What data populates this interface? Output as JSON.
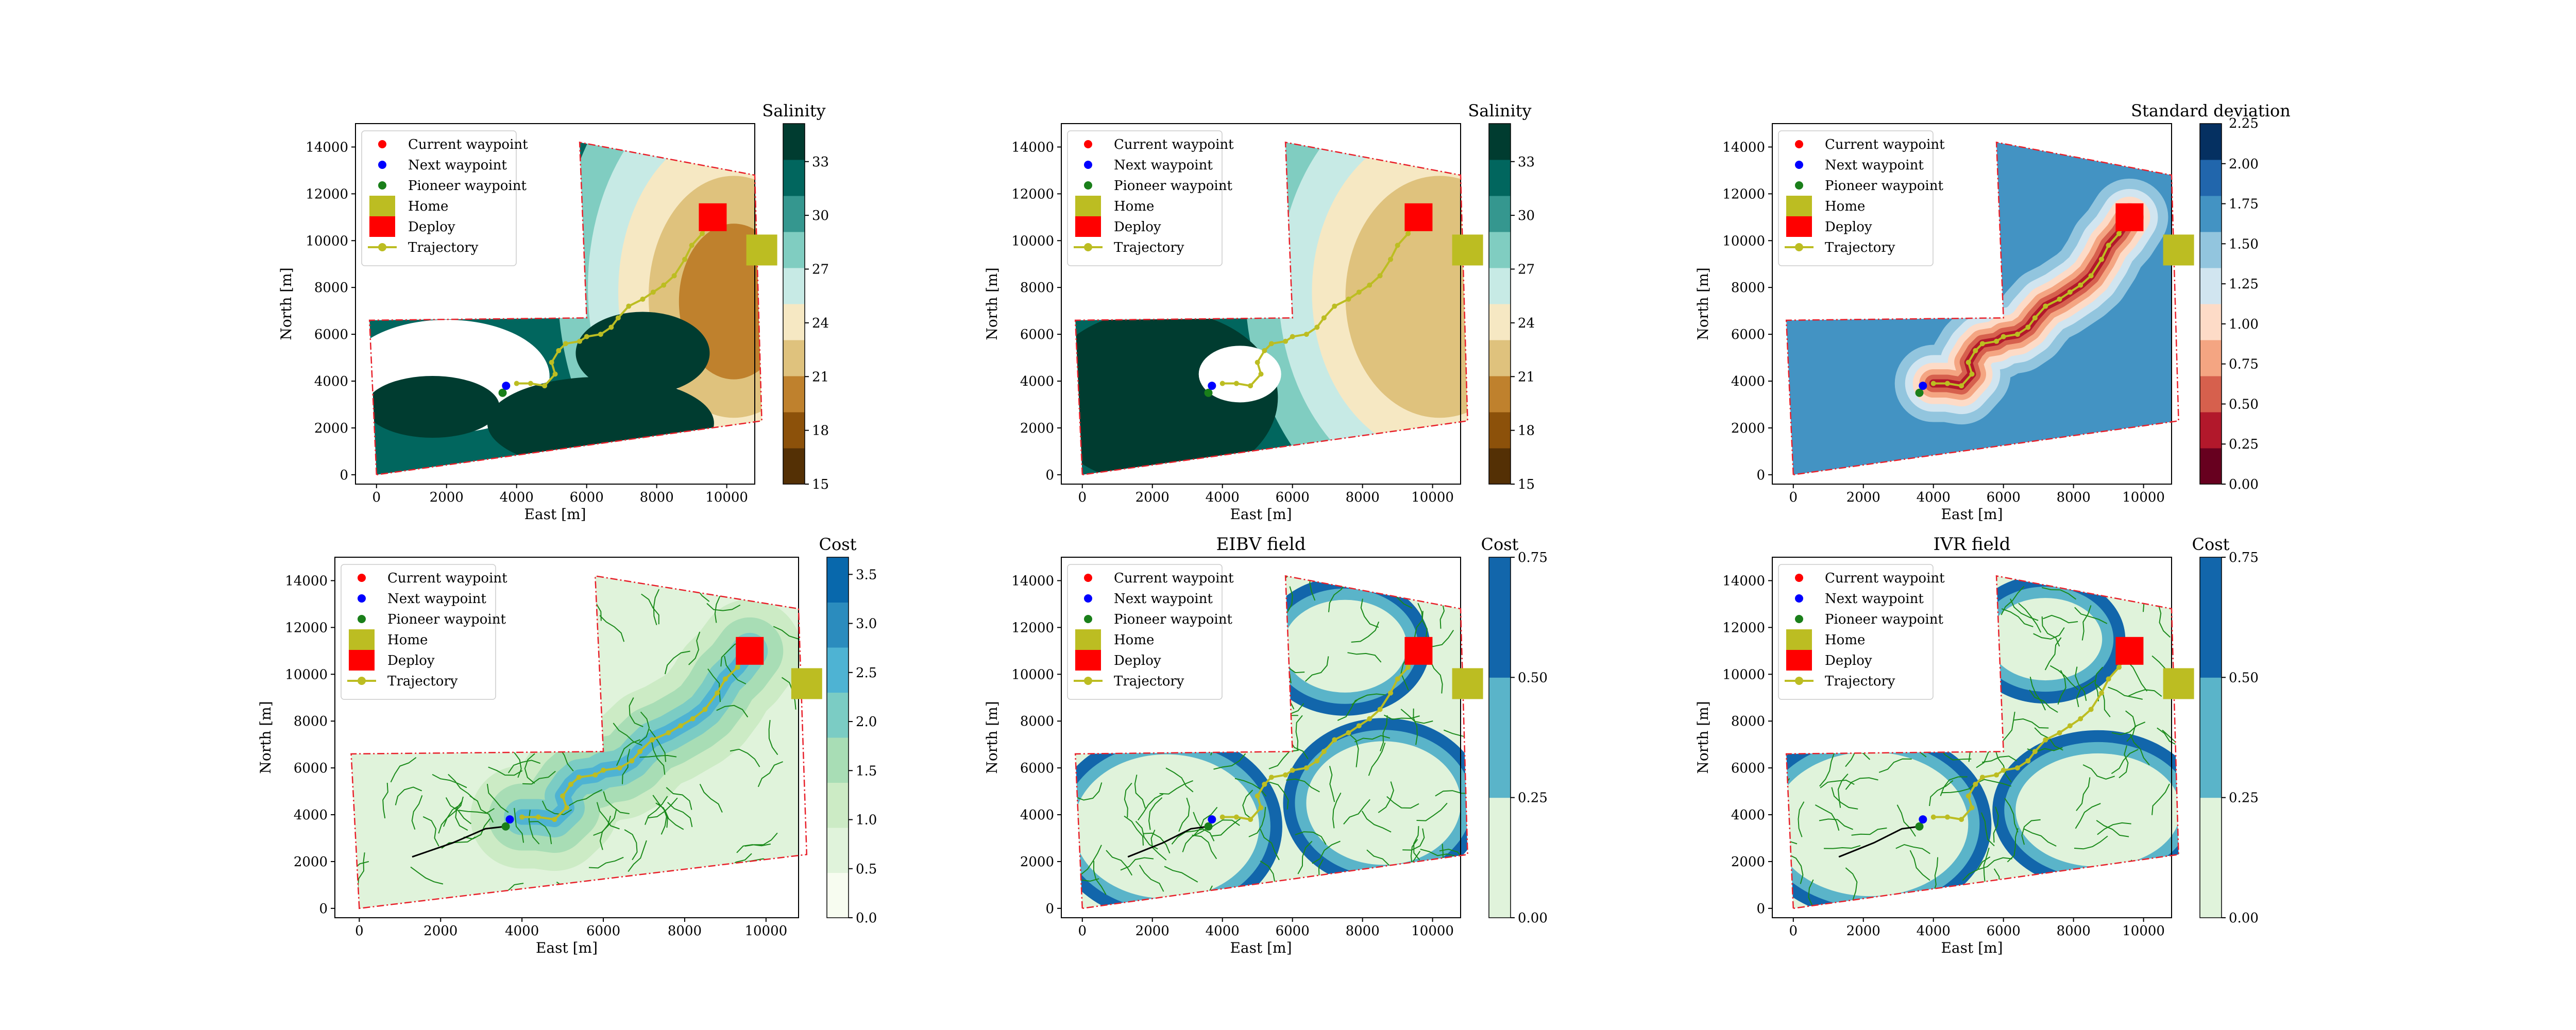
{
  "chart_data": {
    "type": "contour",
    "x_range": [
      -600,
      10800
    ],
    "y_range": [
      -400,
      15000
    ],
    "x_ticks": [
      0,
      2000,
      4000,
      6000,
      8000,
      10000
    ],
    "y_ticks": [
      0,
      2000,
      4000,
      6000,
      8000,
      10000,
      12000,
      14000
    ],
    "x_label": "East [m]",
    "y_label": "North [m]",
    "boundary": [
      [
        0,
        0
      ],
      [
        -200,
        6600
      ],
      [
        6000,
        6700
      ],
      [
        5800,
        14200
      ],
      [
        10800,
        12800
      ],
      [
        11000,
        2300
      ],
      [
        0,
        0
      ]
    ],
    "home": [
      11000,
      9600
    ],
    "deploy": [
      9600,
      11000
    ],
    "current_waypoint": [
      9600,
      11000
    ],
    "next_waypoint": [
      3700,
      3800
    ],
    "pioneer_waypoint": [
      3600,
      3500
    ],
    "trajectory": [
      [
        4000,
        3900
      ],
      [
        4400,
        3900
      ],
      [
        4800,
        3800
      ],
      [
        5100,
        4300
      ],
      [
        5000,
        4800
      ],
      [
        5200,
        5300
      ],
      [
        5400,
        5600
      ],
      [
        5800,
        5700
      ],
      [
        6000,
        5900
      ],
      [
        6400,
        6000
      ],
      [
        6700,
        6300
      ],
      [
        6900,
        6700
      ],
      [
        7200,
        7200
      ],
      [
        7600,
        7500
      ],
      [
        7900,
        7800
      ],
      [
        8200,
        8100
      ],
      [
        8500,
        8500
      ],
      [
        8800,
        9200
      ],
      [
        9000,
        9800
      ],
      [
        9300,
        10300
      ],
      [
        9600,
        11000
      ]
    ],
    "legend": [
      "Current waypoint",
      "Next waypoint",
      "Pioneer waypoint",
      "Home",
      "Deploy",
      "Trajectory"
    ],
    "panels": [
      {
        "title": "",
        "colorbar_title": "Salinity",
        "cb_ticks": [
          "15",
          "18",
          "21",
          "24",
          "27",
          "30",
          "33"
        ],
        "cb_max": "",
        "cb_colors": [
          "#543005",
          "#8c510a",
          "#bf812d",
          "#dfc27d",
          "#f6e8c3",
          "#c7eae5",
          "#80cdc1",
          "#35978f",
          "#01665e",
          "#003c30"
        ]
      },
      {
        "title": "",
        "colorbar_title": "Salinity",
        "cb_ticks": [
          "15",
          "18",
          "21",
          "24",
          "27",
          "30",
          "33"
        ],
        "cb_max": "",
        "cb_colors": [
          "#543005",
          "#8c510a",
          "#bf812d",
          "#dfc27d",
          "#f6e8c3",
          "#c7eae5",
          "#80cdc1",
          "#35978f",
          "#01665e",
          "#003c30"
        ]
      },
      {
        "title": "",
        "colorbar_title": "Standard deviation",
        "cb_ticks": [
          "0.00",
          "0.25",
          "0.50",
          "0.75",
          "1.00",
          "1.25",
          "1.50",
          "1.75",
          "2.00"
        ],
        "cb_max": "2.25",
        "cb_colors": [
          "#67001f",
          "#b2182b",
          "#d6604d",
          "#f4a582",
          "#fddbc7",
          "#d1e5f0",
          "#92c5de",
          "#4393c3",
          "#2166ac",
          "#053061"
        ]
      },
      {
        "title": "",
        "colorbar_title": "Cost",
        "cb_ticks": [
          "0.0",
          "0.5",
          "1.0",
          "1.5",
          "2.0",
          "2.5",
          "3.0",
          "3.5"
        ],
        "cb_max": "",
        "cb_colors": [
          "#f7fcf0",
          "#e0f3db",
          "#ccebc5",
          "#a8ddb5",
          "#7bccc4",
          "#4eb3d3",
          "#2b8cbe",
          "#0868ac"
        ]
      },
      {
        "title": "EIBV field",
        "colorbar_title": "Cost",
        "cb_ticks": [
          "0.00",
          "0.25",
          "0.50",
          "0.75"
        ],
        "cb_max": "",
        "cb_colors": [
          "#e0f3db",
          "#5ab4c9",
          "#1266ab"
        ]
      },
      {
        "title": "IVR field",
        "colorbar_title": "Cost",
        "cb_ticks": [
          "0.00",
          "0.25",
          "0.50",
          "0.75"
        ],
        "cb_max": "",
        "cb_colors": [
          "#e0f3db",
          "#5ab4c9",
          "#1266ab"
        ]
      }
    ]
  }
}
